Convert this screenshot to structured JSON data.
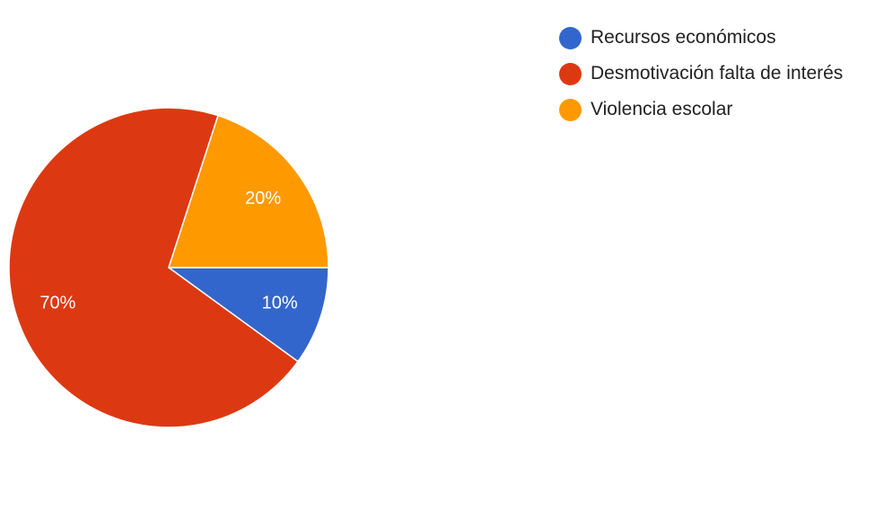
{
  "chart_data": {
    "type": "pie",
    "title": "",
    "categories": [
      "Recursos económicos",
      "Desmotivación falta de interés",
      "Violencia escolar"
    ],
    "values": [
      10,
      70,
      20
    ],
    "value_labels": [
      "10%",
      "70%",
      "20%"
    ],
    "colors": [
      "#3366cc",
      "#dc3912",
      "#ff9900"
    ],
    "legend_position": "right"
  }
}
